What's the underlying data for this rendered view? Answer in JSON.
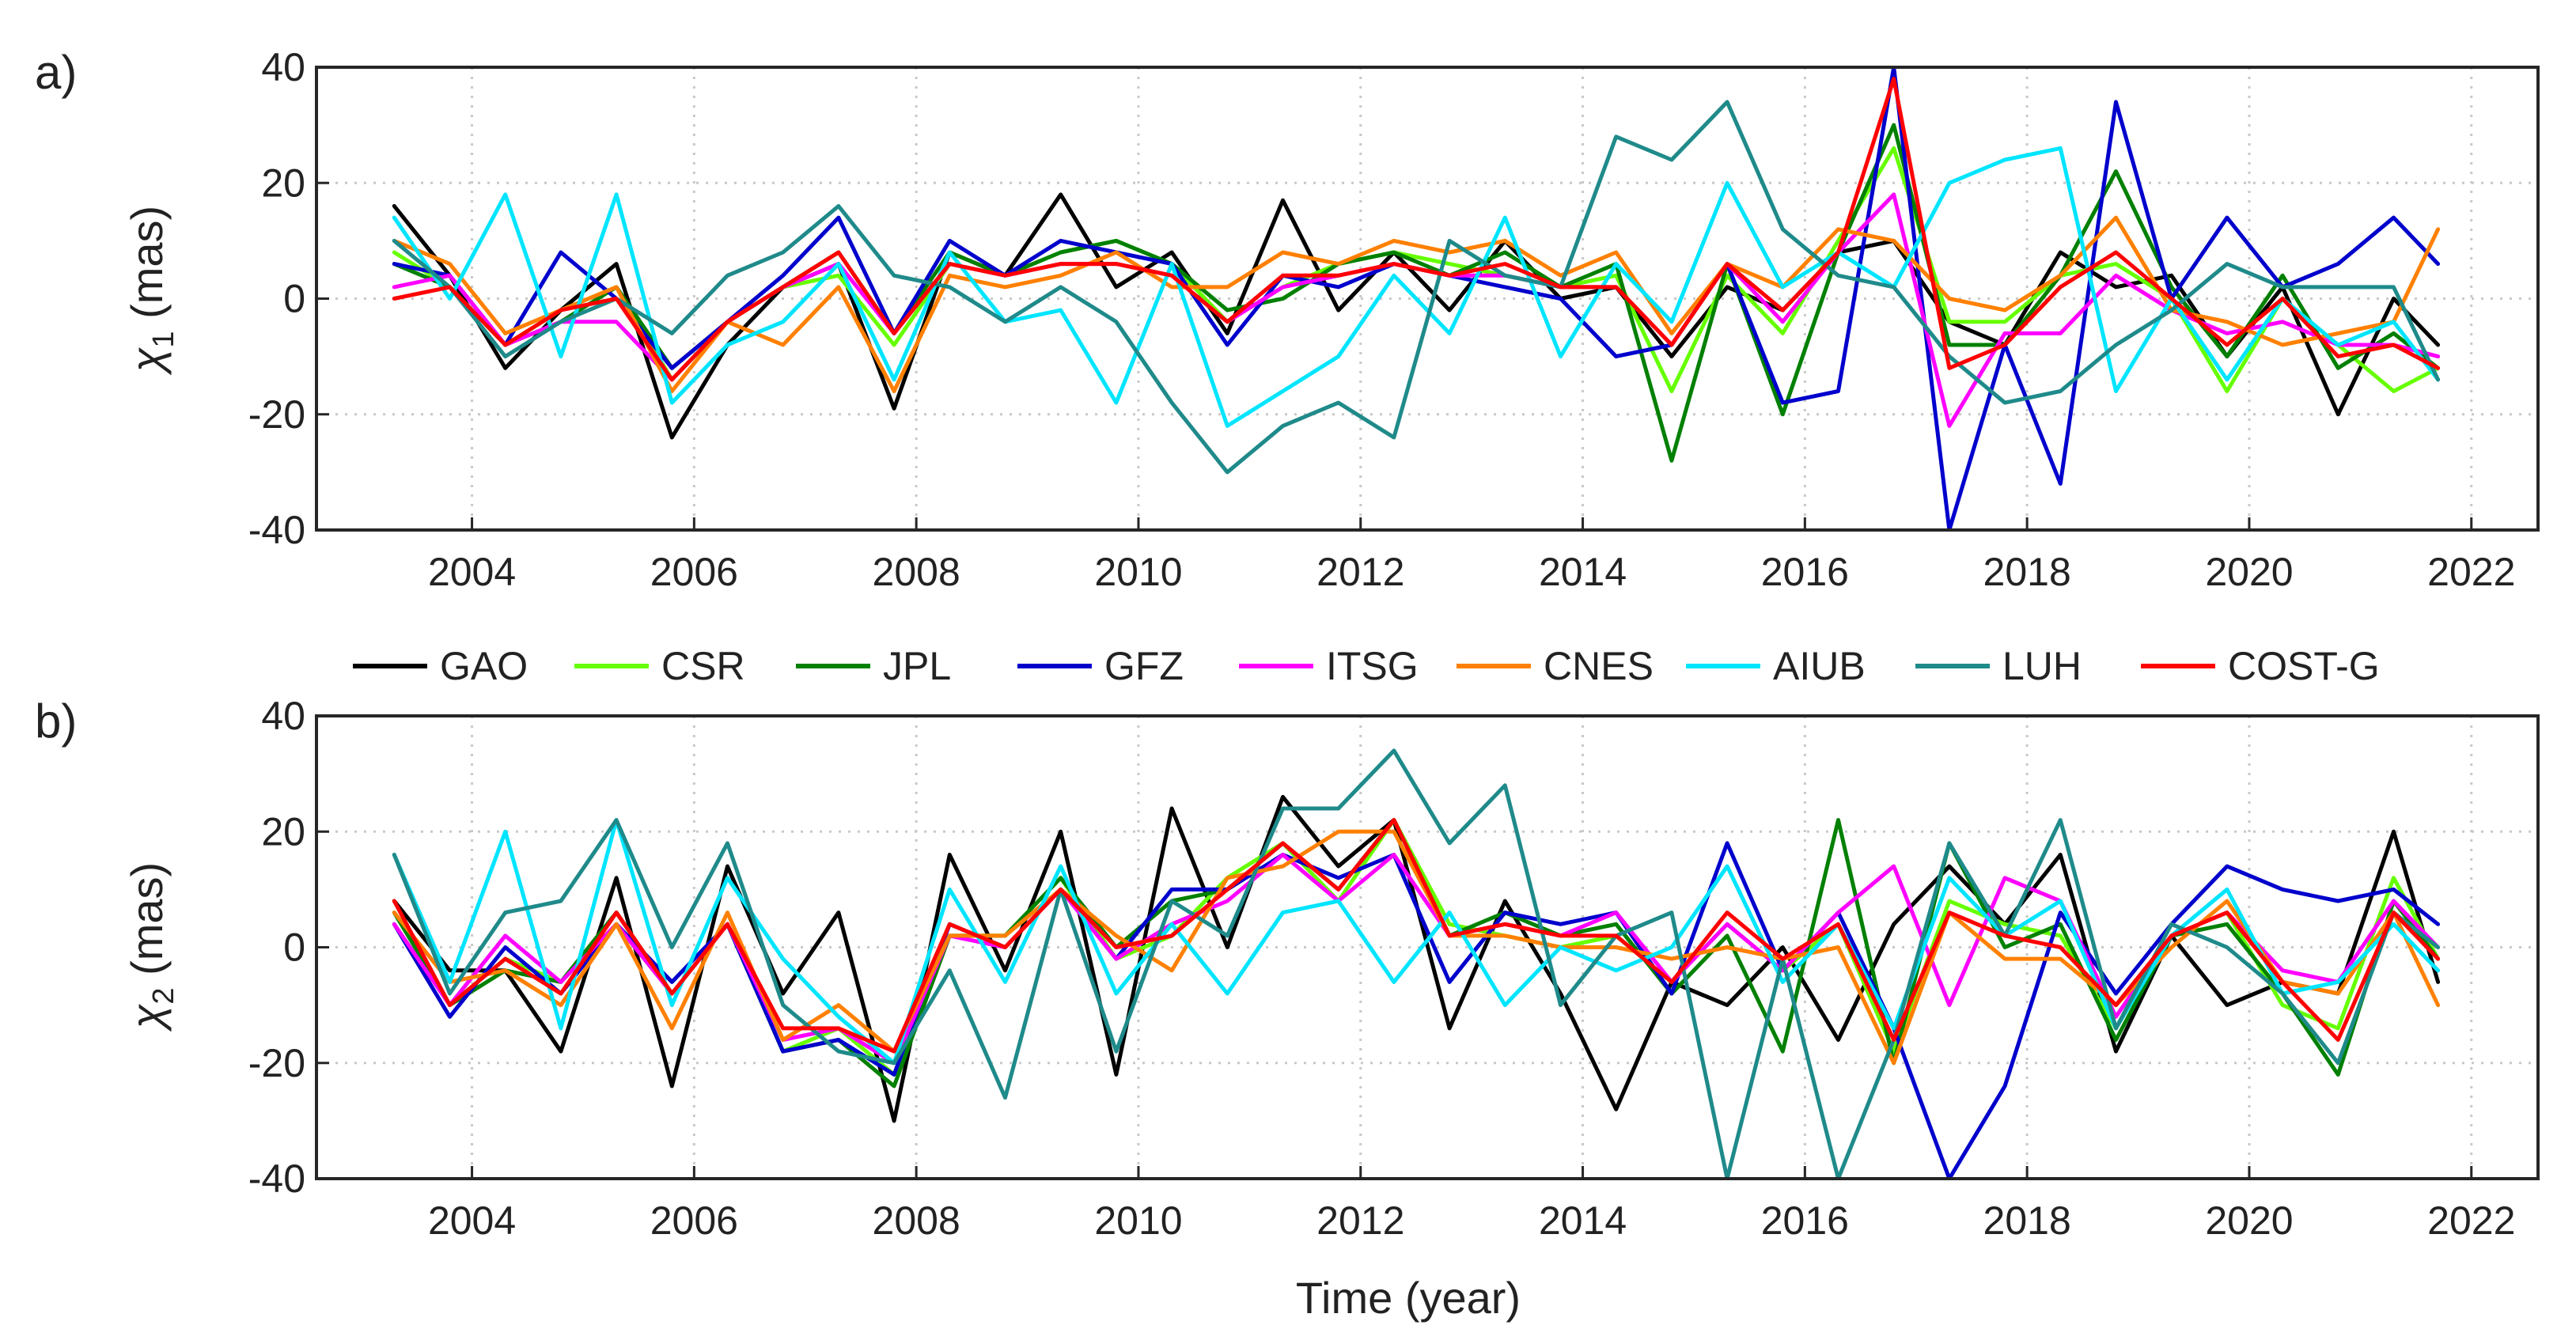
{
  "chart_data": {
    "type": "line",
    "legend": {
      "placement": "between-panels",
      "entries": [
        "GAO",
        "CSR",
        "JPL",
        "GFZ",
        "ITSG",
        "CNES",
        "AIUB",
        "LUH",
        "COST-G"
      ]
    },
    "xlabel": "Time (year)",
    "xlim": [
      2002.6,
      2022.6
    ],
    "xticks": [
      2004,
      2006,
      2008,
      2010,
      2012,
      2014,
      2016,
      2018,
      2020,
      2022
    ],
    "x": [
      2003.3,
      2003.8,
      2004.3,
      2004.8,
      2005.3,
      2005.8,
      2006.3,
      2006.8,
      2007.3,
      2007.8,
      2008.3,
      2008.8,
      2009.3,
      2009.8,
      2010.3,
      2010.8,
      2011.3,
      2011.8,
      2012.3,
      2012.8,
      2013.3,
      2013.8,
      2014.3,
      2014.8,
      2015.3,
      2015.8,
      2016.3,
      2016.8,
      2017.3,
      2017.8,
      2018.3,
      2018.8,
      2019.3,
      2019.8,
      2020.3,
      2020.8,
      2021.3,
      2021.7
    ],
    "panels": [
      {
        "label": "a)",
        "ylabel_main": "χ",
        "ylabel_sub": "1",
        "ylabel_unit": " (mas)",
        "ylim": [
          -40,
          40
        ],
        "yticks": [
          -40,
          -20,
          0,
          20,
          40
        ],
        "grid": true,
        "series": [
          {
            "name": "GAO",
            "color": "#000000",
            "values": [
              16,
              4,
              -12,
              -2,
              6,
              -24,
              -8,
              2,
              6,
              -19,
              8,
              4,
              18,
              2,
              8,
              -6,
              17,
              -2,
              8,
              -2,
              10,
              0,
              2,
              -10,
              2,
              -2,
              8,
              10,
              -4,
              -8,
              8,
              2,
              4,
              -10,
              2,
              -20,
              0,
              -8
            ]
          },
          {
            "name": "CSR",
            "color": "#66ff00",
            "values": [
              8,
              2,
              -8,
              -2,
              2,
              -14,
              -4,
              2,
              4,
              -8,
              6,
              4,
              8,
              10,
              6,
              -4,
              2,
              6,
              8,
              6,
              4,
              2,
              4,
              -16,
              4,
              -6,
              10,
              26,
              -4,
              -4,
              4,
              6,
              0,
              -16,
              0,
              -8,
              -16,
              -12
            ]
          },
          {
            "name": "JPL",
            "color": "#008000",
            "values": [
              6,
              2,
              -8,
              -4,
              2,
              -12,
              -4,
              2,
              8,
              -6,
              8,
              4,
              8,
              10,
              6,
              -2,
              0,
              6,
              8,
              4,
              8,
              2,
              6,
              -28,
              6,
              -20,
              8,
              30,
              -8,
              -8,
              4,
              22,
              2,
              -10,
              4,
              -12,
              -6,
              -12
            ]
          },
          {
            "name": "GFZ",
            "color": "#0000cc",
            "values": [
              6,
              4,
              -8,
              8,
              0,
              -12,
              -4,
              4,
              14,
              -6,
              10,
              4,
              10,
              8,
              6,
              -8,
              4,
              2,
              6,
              4,
              2,
              0,
              -10,
              -8,
              6,
              -18,
              -16,
              40,
              -40,
              -8,
              -32,
              34,
              0,
              14,
              2,
              6,
              14,
              6
            ]
          },
          {
            "name": "ITSG",
            "color": "#ff00ff",
            "values": [
              2,
              4,
              -8,
              -4,
              -4,
              -14,
              -4,
              2,
              6,
              -6,
              6,
              4,
              6,
              6,
              4,
              -4,
              2,
              4,
              6,
              4,
              4,
              2,
              2,
              -8,
              6,
              -4,
              8,
              18,
              -22,
              -6,
              -6,
              4,
              -2,
              -6,
              -4,
              -8,
              -8,
              -10
            ]
          },
          {
            "name": "CNES",
            "color": "#ff8000",
            "values": [
              10,
              6,
              -6,
              -2,
              2,
              -16,
              -4,
              -8,
              2,
              -16,
              4,
              2,
              4,
              8,
              2,
              2,
              8,
              6,
              10,
              8,
              10,
              4,
              8,
              -6,
              6,
              2,
              12,
              10,
              0,
              -2,
              4,
              14,
              -2,
              -4,
              -8,
              -6,
              -4,
              12
            ]
          },
          {
            "name": "AIUB",
            "color": "#00e5ff",
            "values": [
              14,
              0,
              18,
              -10,
              18,
              -18,
              -8,
              -4,
              6,
              -14,
              8,
              -4,
              -2,
              -18,
              6,
              -22,
              -16,
              -10,
              4,
              -6,
              14,
              -10,
              6,
              -4,
              20,
              2,
              8,
              2,
              20,
              24,
              26,
              -16,
              0,
              -14,
              0,
              -8,
              -4,
              -14
            ]
          },
          {
            "name": "LUH",
            "color": "#1f8a8a",
            "values": [
              10,
              2,
              -10,
              -4,
              0,
              -6,
              4,
              8,
              16,
              4,
              2,
              -4,
              2,
              -4,
              -18,
              -30,
              -22,
              -18,
              -24,
              10,
              4,
              2,
              28,
              24,
              34,
              12,
              4,
              2,
              -10,
              -18,
              -16,
              -8,
              -2,
              6,
              2,
              2,
              2,
              -14
            ]
          },
          {
            "name": "COST-G",
            "color": "#ff0000",
            "values": [
              0,
              2,
              -8,
              -2,
              0,
              -14,
              -4,
              2,
              8,
              -6,
              6,
              4,
              6,
              6,
              4,
              -4,
              4,
              4,
              6,
              4,
              6,
              2,
              2,
              -8,
              6,
              -2,
              8,
              38,
              -12,
              -8,
              2,
              8,
              0,
              -8,
              0,
              -10,
              -8,
              -12
            ]
          }
        ]
      },
      {
        "label": "b)",
        "ylabel_main": "χ",
        "ylabel_sub": "2",
        "ylabel_unit": " (mas)",
        "ylim": [
          -40,
          40
        ],
        "yticks": [
          -40,
          -20,
          0,
          20,
          40
        ],
        "grid": true,
        "series": [
          {
            "name": "GAO",
            "color": "#000000",
            "values": [
              8,
              -4,
              -4,
              -18,
              12,
              -24,
              14,
              -8,
              6,
              -30,
              16,
              -4,
              20,
              -22,
              24,
              0,
              26,
              14,
              22,
              -14,
              8,
              -8,
              -28,
              -6,
              -10,
              0,
              -16,
              4,
              14,
              4,
              16,
              -18,
              2,
              -10,
              -6,
              -8,
              20,
              -6
            ]
          },
          {
            "name": "CSR",
            "color": "#66ff00",
            "values": [
              6,
              -10,
              -2,
              -6,
              4,
              -8,
              4,
              -18,
              -14,
              -22,
              2,
              2,
              12,
              -2,
              2,
              12,
              18,
              8,
              22,
              4,
              2,
              0,
              2,
              -6,
              4,
              -4,
              4,
              -18,
              8,
              4,
              2,
              -14,
              2,
              6,
              -10,
              -14,
              12,
              -2
            ]
          },
          {
            "name": "JPL",
            "color": "#008000",
            "values": [
              6,
              -10,
              -4,
              -6,
              6,
              -8,
              4,
              -18,
              -16,
              -24,
              2,
              2,
              12,
              0,
              8,
              10,
              18,
              10,
              22,
              2,
              6,
              2,
              4,
              -8,
              2,
              -18,
              22,
              -20,
              18,
              0,
              4,
              -16,
              2,
              4,
              -8,
              -22,
              8,
              -2
            ]
          },
          {
            "name": "GFZ",
            "color": "#0000cc",
            "values": [
              4,
              -12,
              0,
              -8,
              4,
              -6,
              4,
              -18,
              -16,
              -22,
              4,
              0,
              10,
              -2,
              10,
              10,
              16,
              12,
              16,
              -6,
              6,
              4,
              6,
              -8,
              18,
              -4,
              6,
              -14,
              -40,
              -24,
              6,
              -8,
              4,
              14,
              10,
              8,
              10,
              4
            ]
          },
          {
            "name": "ITSG",
            "color": "#ff00ff",
            "values": [
              4,
              -10,
              2,
              -6,
              4,
              -8,
              4,
              -16,
              -14,
              -20,
              2,
              0,
              10,
              -2,
              4,
              8,
              16,
              8,
              16,
              2,
              4,
              2,
              6,
              -6,
              4,
              -4,
              6,
              14,
              -10,
              12,
              8,
              -12,
              2,
              6,
              -4,
              -6,
              8,
              0
            ]
          },
          {
            "name": "CNES",
            "color": "#ff8000",
            "values": [
              6,
              -6,
              -4,
              -10,
              4,
              -14,
              6,
              -16,
              -10,
              -18,
              2,
              2,
              10,
              2,
              -4,
              12,
              14,
              20,
              20,
              2,
              2,
              0,
              0,
              -2,
              0,
              -2,
              0,
              -20,
              6,
              -2,
              -2,
              -10,
              0,
              8,
              -6,
              -8,
              6,
              -10
            ]
          },
          {
            "name": "AIUB",
            "color": "#00e5ff",
            "values": [
              16,
              -6,
              20,
              -14,
              22,
              -10,
              12,
              -2,
              -12,
              -20,
              10,
              -6,
              14,
              -8,
              4,
              -8,
              6,
              8,
              -6,
              6,
              -10,
              0,
              -4,
              0,
              14,
              -6,
              4,
              -14,
              12,
              2,
              8,
              -14,
              2,
              10,
              -8,
              -6,
              4,
              -4
            ]
          },
          {
            "name": "LUH",
            "color": "#1f8a8a",
            "values": [
              16,
              -8,
              6,
              8,
              22,
              0,
              18,
              -10,
              -18,
              -20,
              -4,
              -26,
              10,
              -18,
              8,
              2,
              24,
              24,
              34,
              18,
              28,
              -10,
              2,
              6,
              -40,
              -2,
              -40,
              -16,
              18,
              2,
              22,
              -14,
              4,
              0,
              -8,
              -20,
              6,
              0
            ]
          },
          {
            "name": "COST-G",
            "color": "#ff0000",
            "values": [
              8,
              -10,
              -2,
              -8,
              6,
              -8,
              4,
              -14,
              -14,
              -18,
              4,
              0,
              10,
              0,
              2,
              10,
              18,
              10,
              22,
              2,
              4,
              2,
              2,
              -6,
              6,
              -2,
              4,
              -16,
              6,
              2,
              0,
              -10,
              2,
              6,
              -6,
              -16,
              6,
              -2
            ]
          }
        ]
      }
    ]
  }
}
